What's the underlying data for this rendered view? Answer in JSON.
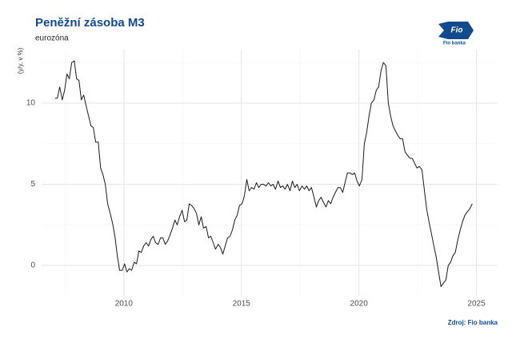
{
  "chart_data": {
    "type": "line",
    "title": "Peněžní zásoba M3",
    "subtitle": "eurozóna",
    "y_label": "(y/y, v %)",
    "source": "Zdroj: Fio banka",
    "logo_mark": "Fio",
    "logo_text": "Fio banka",
    "color": "#1a1a1a",
    "grid": true,
    "minor_grid": true,
    "xlim": [
      2006.5,
      2025.9
    ],
    "xticks": [
      2010,
      2015,
      2020,
      2025
    ],
    "ylim": [
      -1.87,
      13.3
    ],
    "yticks": [
      0,
      5,
      10
    ],
    "x": [
      2007.07,
      2007.17,
      2007.27,
      2007.38,
      2007.48,
      2007.58,
      2007.68,
      2007.78,
      2007.89,
      2007.99,
      2008.09,
      2008.19,
      2008.29,
      2008.4,
      2008.5,
      2008.6,
      2008.7,
      2008.8,
      2008.91,
      2009.01,
      2009.11,
      2009.21,
      2009.31,
      2009.42,
      2009.52,
      2009.62,
      2009.72,
      2009.82,
      2009.93,
      2010.03,
      2010.13,
      2010.23,
      2010.33,
      2010.44,
      2010.54,
      2010.64,
      2010.74,
      2010.84,
      2010.95,
      2011.05,
      2011.15,
      2011.25,
      2011.35,
      2011.46,
      2011.56,
      2011.66,
      2011.76,
      2011.86,
      2011.97,
      2012.07,
      2012.17,
      2012.27,
      2012.37,
      2012.48,
      2012.58,
      2012.68,
      2012.78,
      2012.88,
      2012.99,
      2013.09,
      2013.19,
      2013.29,
      2013.39,
      2013.5,
      2013.6,
      2013.7,
      2013.8,
      2013.9,
      2014.01,
      2014.11,
      2014.21,
      2014.31,
      2014.41,
      2014.52,
      2014.62,
      2014.72,
      2014.82,
      2014.92,
      2015.03,
      2015.13,
      2015.23,
      2015.33,
      2015.43,
      2015.54,
      2015.64,
      2015.74,
      2015.84,
      2015.94,
      2016.05,
      2016.15,
      2016.25,
      2016.35,
      2016.45,
      2016.56,
      2016.66,
      2016.76,
      2016.86,
      2016.96,
      2017.07,
      2017.17,
      2017.27,
      2017.37,
      2017.47,
      2017.58,
      2017.68,
      2017.78,
      2017.88,
      2017.98,
      2018.09,
      2018.19,
      2018.29,
      2018.39,
      2018.49,
      2018.6,
      2018.7,
      2018.8,
      2018.9,
      2019.0,
      2019.11,
      2019.21,
      2019.31,
      2019.41,
      2019.51,
      2019.62,
      2019.72,
      2019.82,
      2019.92,
      2020.02,
      2020.13,
      2020.23,
      2020.33,
      2020.43,
      2020.53,
      2020.64,
      2020.74,
      2020.84,
      2020.94,
      2021.04,
      2021.15,
      2021.25,
      2021.35,
      2021.45,
      2021.55,
      2021.66,
      2021.76,
      2021.86,
      2021.96,
      2022.06,
      2022.17,
      2022.27,
      2022.37,
      2022.47,
      2022.57,
      2022.68,
      2022.78,
      2022.88,
      2022.98,
      2023.08,
      2023.19,
      2023.29,
      2023.39,
      2023.49,
      2023.59,
      2023.7,
      2023.8,
      2023.9,
      2024.0,
      2024.1,
      2024.21,
      2024.31,
      2024.41,
      2024.51,
      2024.61,
      2024.72,
      2024.82
    ],
    "values": [
      10.3,
      10.3,
      11.0,
      10.2,
      10.8,
      11.8,
      11.5,
      12.5,
      12.6,
      11.5,
      11.4,
      10.2,
      10.5,
      9.8,
      9.2,
      8.6,
      8.5,
      7.6,
      7.6,
      6.0,
      5.6,
      5.0,
      3.8,
      3.2,
      2.6,
      1.8,
      0.6,
      -0.3,
      -0.3,
      0.1,
      -0.4,
      -0.2,
      -0.3,
      0.2,
      0.1,
      0.9,
      0.8,
      1.2,
      1.4,
      1.2,
      1.6,
      1.8,
      1.4,
      1.3,
      1.7,
      1.7,
      1.3,
      1.5,
      1.9,
      2.3,
      2.8,
      2.5,
      3.0,
      3.4,
      2.7,
      2.8,
      3.8,
      3.7,
      3.5,
      3.2,
      2.5,
      3.0,
      2.3,
      2.4,
      1.7,
      1.8,
      1.4,
      1.0,
      1.3,
      1.1,
      0.7,
      1.2,
      1.7,
      1.8,
      2.2,
      2.8,
      3.1,
      3.7,
      3.8,
      4.3,
      5.3,
      4.6,
      4.8,
      4.7,
      5.1,
      4.8,
      5.0,
      5.0,
      4.9,
      5.1,
      4.9,
      5.0,
      4.7,
      5.2,
      4.8,
      4.9,
      4.7,
      5.0,
      4.6,
      5.2,
      4.8,
      5.0,
      4.6,
      4.9,
      4.7,
      4.9,
      4.6,
      4.8,
      4.2,
      3.6,
      4.0,
      4.2,
      3.9,
      3.6,
      4.0,
      3.8,
      4.2,
      4.5,
      4.8,
      4.8,
      4.5,
      5.1,
      5.7,
      5.7,
      5.6,
      5.7,
      5.2,
      4.9,
      5.3,
      7.5,
      8.2,
      9.2,
      10.0,
      10.2,
      10.8,
      11.0,
      12.0,
      12.5,
      12.3,
      10.0,
      9.2,
      8.6,
      8.3,
      8.0,
      7.8,
      7.8,
      7.0,
      6.8,
      6.6,
      6.6,
      6.3,
      6.0,
      6.1,
      5.9,
      4.7,
      3.5,
      2.7,
      2.0,
      1.2,
      0.5,
      -0.4,
      -1.3,
      -1.1,
      -0.9,
      0.0,
      0.2,
      0.6,
      0.8,
      1.6,
      2.2,
      2.7,
      3.1,
      3.3,
      3.5,
      3.8
    ]
  }
}
